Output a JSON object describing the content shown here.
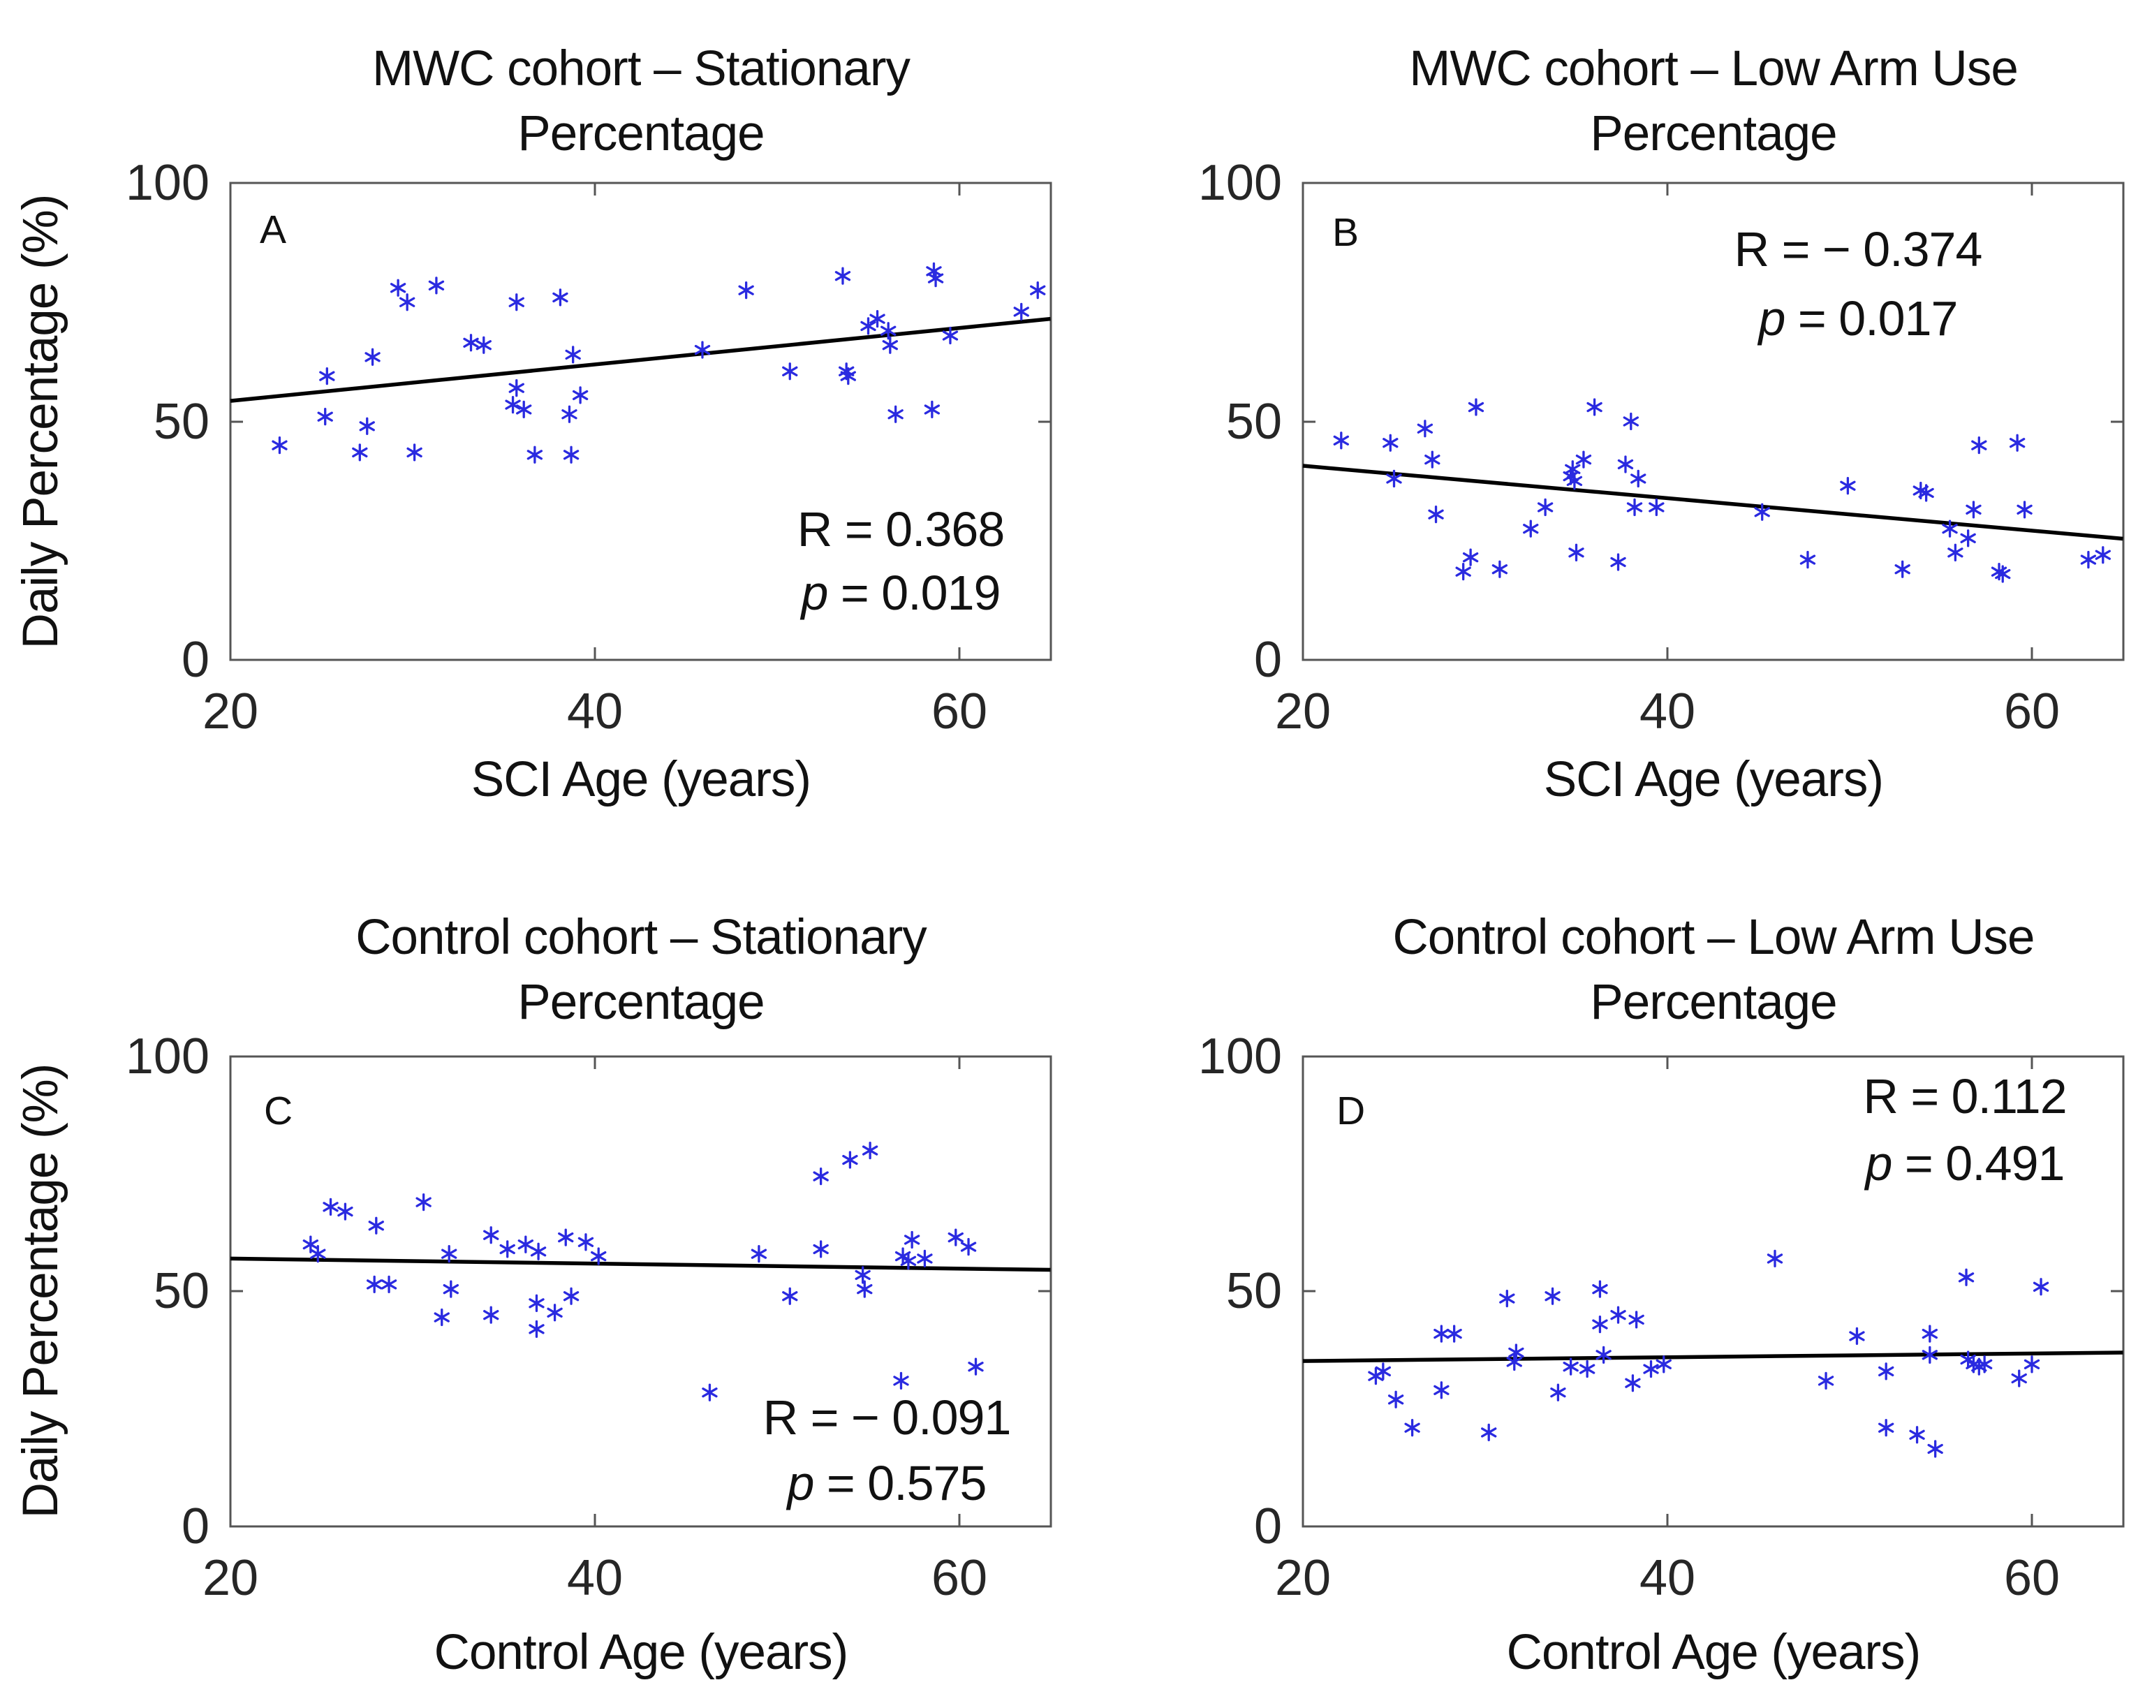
{
  "figure": {
    "background": "#ffffff",
    "marker_color": "#2a2ae0",
    "trend_color": "#000000",
    "axis_color": "#555555",
    "tick_text_color": "#262626",
    "text_color": "#111111"
  },
  "chart_data": {
    "type": "scatter",
    "marker_symbol": "asterisk",
    "grid": false,
    "shared_ylabel": "Daily Percentage (%)",
    "xlim": [
      20,
      65
    ],
    "ylim": [
      0,
      100
    ],
    "panels": [
      {
        "id": "A",
        "letter": "A",
        "title_line1": "MWC cohort – Stationary",
        "title_line2": "Percentage",
        "xlabel": "SCI Age (years)",
        "ylabel": "Daily Percentage (%)",
        "xticks": [
          "20",
          "40",
          "60"
        ],
        "yticks": [
          "0",
          "50",
          "100"
        ],
        "r_text": "R = 0.368",
        "p_italic": "p",
        "p_rest": " = 0.019",
        "stats_corner": "bottom-right",
        "trend": {
          "x": [
            20,
            65
          ],
          "y": [
            54.3,
            71.5
          ]
        },
        "points": [
          [
            22.7,
            45
          ],
          [
            25.2,
            51
          ],
          [
            25.3,
            59.5
          ],
          [
            27.1,
            43.5
          ],
          [
            27.5,
            49
          ],
          [
            27.8,
            63.5
          ],
          [
            29.2,
            78
          ],
          [
            29.7,
            75
          ],
          [
            30.1,
            43.5
          ],
          [
            31.3,
            78.5
          ],
          [
            33.2,
            66.5
          ],
          [
            33.9,
            66
          ],
          [
            35.5,
            53.5
          ],
          [
            35.7,
            75
          ],
          [
            35.7,
            57
          ],
          [
            36.1,
            52.5
          ],
          [
            36.7,
            43
          ],
          [
            38.1,
            76
          ],
          [
            38.6,
            51.5
          ],
          [
            38.7,
            43
          ],
          [
            38.8,
            64
          ],
          [
            39.2,
            55.5
          ],
          [
            45.9,
            65
          ],
          [
            48.3,
            77.5
          ],
          [
            50.7,
            60.5
          ],
          [
            53.6,
            80.5
          ],
          [
            53.8,
            60.5
          ],
          [
            53.9,
            59.5
          ],
          [
            55.0,
            70
          ],
          [
            55.5,
            71.5
          ],
          [
            56.1,
            69
          ],
          [
            56.2,
            66
          ],
          [
            56.5,
            51.5
          ],
          [
            58.5,
            52.5
          ],
          [
            58.6,
            81.5
          ],
          [
            58.7,
            80
          ],
          [
            59.5,
            68
          ],
          [
            63.4,
            73
          ],
          [
            64.3,
            77.5
          ]
        ]
      },
      {
        "id": "B",
        "letter": "B",
        "title_line1": "MWC cohort – Low Arm Use",
        "title_line2": "Percentage",
        "xlabel": "SCI Age (years)",
        "ylabel": "",
        "xticks": [
          "20",
          "40",
          "60"
        ],
        "yticks": [
          "0",
          "50",
          "100"
        ],
        "r_text": "R = − 0.374",
        "p_italic": "p",
        "p_rest": " = 0.017",
        "stats_corner": "top-right",
        "trend": {
          "x": [
            20,
            65
          ],
          "y": [
            40.7,
            25.4
          ]
        },
        "points": [
          [
            22.1,
            46
          ],
          [
            24.8,
            45.5
          ],
          [
            25.0,
            38
          ],
          [
            26.7,
            48.5
          ],
          [
            27.1,
            42
          ],
          [
            27.3,
            30.5
          ],
          [
            28.8,
            18.5
          ],
          [
            29.2,
            21.5
          ],
          [
            29.5,
            53
          ],
          [
            30.8,
            19
          ],
          [
            32.5,
            27.5
          ],
          [
            33.3,
            32
          ],
          [
            34.7,
            38.5
          ],
          [
            34.8,
            40
          ],
          [
            34.9,
            37.5
          ],
          [
            35.0,
            22.5
          ],
          [
            35.4,
            42
          ],
          [
            36.0,
            53
          ],
          [
            37.3,
            20.5
          ],
          [
            37.7,
            41
          ],
          [
            38.0,
            50
          ],
          [
            38.2,
            32
          ],
          [
            38.4,
            38
          ],
          [
            39.4,
            32
          ],
          [
            45.2,
            31
          ],
          [
            47.7,
            21
          ],
          [
            49.9,
            36.5
          ],
          [
            52.9,
            19
          ],
          [
            53.9,
            35.5
          ],
          [
            54.2,
            35
          ],
          [
            55.5,
            27.5
          ],
          [
            55.8,
            22.5
          ],
          [
            56.5,
            25.5
          ],
          [
            56.8,
            31.5
          ],
          [
            57.1,
            45
          ],
          [
            58.2,
            18.5
          ],
          [
            58.4,
            18
          ],
          [
            59.2,
            45.5
          ],
          [
            59.6,
            31.5
          ],
          [
            63.1,
            21
          ],
          [
            63.9,
            22
          ]
        ]
      },
      {
        "id": "C",
        "letter": "C",
        "title_line1": "Control cohort – Stationary",
        "title_line2": "Percentage",
        "xlabel": "Control Age (years)",
        "ylabel": "Daily Percentage (%)",
        "xticks": [
          "20",
          "40",
          "60"
        ],
        "yticks": [
          "0",
          "50",
          "100"
        ],
        "r_text": "R = − 0.091",
        "p_italic": "p",
        "p_rest": " = 0.575",
        "stats_corner": "bottom-right",
        "trend": {
          "x": [
            20,
            65
          ],
          "y": [
            57.0,
            54.6
          ]
        },
        "points": [
          [
            24.4,
            60
          ],
          [
            24.8,
            58
          ],
          [
            25.5,
            68
          ],
          [
            26.3,
            67
          ],
          [
            27.9,
            51.5
          ],
          [
            28.0,
            64
          ],
          [
            28.7,
            51.5
          ],
          [
            30.6,
            69
          ],
          [
            31.6,
            44.5
          ],
          [
            32.0,
            58
          ],
          [
            32.1,
            50.5
          ],
          [
            34.3,
            45
          ],
          [
            34.3,
            62
          ],
          [
            35.2,
            59
          ],
          [
            36.2,
            60
          ],
          [
            36.8,
            47.5
          ],
          [
            36.8,
            42
          ],
          [
            36.9,
            58.5
          ],
          [
            37.8,
            45.5
          ],
          [
            38.4,
            61.5
          ],
          [
            38.7,
            49
          ],
          [
            39.5,
            60.5
          ],
          [
            40.2,
            57.5
          ],
          [
            46.3,
            28.5
          ],
          [
            49.0,
            58
          ],
          [
            50.7,
            49
          ],
          [
            52.4,
            74.5
          ],
          [
            52.4,
            59
          ],
          [
            54.0,
            78
          ],
          [
            54.7,
            53.5
          ],
          [
            54.8,
            50.5
          ],
          [
            55.1,
            80
          ],
          [
            56.8,
            31
          ],
          [
            56.9,
            57.5
          ],
          [
            57.2,
            56.5
          ],
          [
            57.4,
            61
          ],
          [
            58.1,
            57
          ],
          [
            59.8,
            61.5
          ],
          [
            60.5,
            59.5
          ],
          [
            60.9,
            34
          ]
        ]
      },
      {
        "id": "D",
        "letter": "D",
        "title_line1": "Control cohort – Low Arm Use",
        "title_line2": "Percentage",
        "xlabel": "Control Age (years)",
        "ylabel": "",
        "xticks": [
          "20",
          "40",
          "60"
        ],
        "yticks": [
          "0",
          "50",
          "100"
        ],
        "r_text": "R = 0.112",
        "p_italic": "p",
        "p_rest": " = 0.491",
        "stats_corner": "top-right",
        "trend": {
          "x": [
            20,
            65
          ],
          "y": [
            35.2,
            37.0
          ]
        },
        "points": [
          [
            24.0,
            32
          ],
          [
            24.4,
            33
          ],
          [
            25.1,
            27
          ],
          [
            26.0,
            21
          ],
          [
            27.6,
            41
          ],
          [
            27.6,
            29
          ],
          [
            28.3,
            41
          ],
          [
            30.2,
            20
          ],
          [
            31.2,
            48.5
          ],
          [
            31.6,
            35
          ],
          [
            31.7,
            37
          ],
          [
            33.7,
            49
          ],
          [
            34.0,
            28.5
          ],
          [
            34.7,
            34
          ],
          [
            35.6,
            33.5
          ],
          [
            36.3,
            50.5
          ],
          [
            36.3,
            43
          ],
          [
            36.5,
            36.5
          ],
          [
            37.3,
            45
          ],
          [
            38.1,
            30.5
          ],
          [
            38.3,
            44
          ],
          [
            39.1,
            33.5
          ],
          [
            39.8,
            34.5
          ],
          [
            45.9,
            57
          ],
          [
            48.7,
            31
          ],
          [
            50.4,
            40.5
          ],
          [
            52.0,
            33
          ],
          [
            52.0,
            21
          ],
          [
            53.7,
            19.5
          ],
          [
            54.4,
            41
          ],
          [
            54.4,
            36.5
          ],
          [
            54.7,
            16.5
          ],
          [
            56.4,
            53
          ],
          [
            56.5,
            35.5
          ],
          [
            56.8,
            34.5
          ],
          [
            57.1,
            34
          ],
          [
            57.4,
            34.5
          ],
          [
            59.3,
            31.5
          ],
          [
            60.0,
            34.5
          ],
          [
            60.5,
            51
          ]
        ]
      }
    ]
  }
}
